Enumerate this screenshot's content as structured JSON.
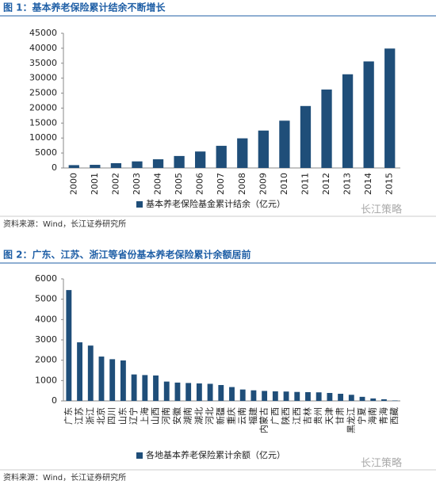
{
  "chart_data": [
    {
      "type": "bar",
      "title": "图 1：基本养老保险累计结余不断增长",
      "categories": [
        "2000",
        "2001",
        "2002",
        "2003",
        "2004",
        "2005",
        "2006",
        "2007",
        "2008",
        "2009",
        "2010",
        "2011",
        "2012",
        "2013",
        "2014",
        "2015"
      ],
      "series": [
        {
          "name": "基本养老保险基金累计结余（亿元）",
          "color": "#1f4e79",
          "values": [
            950,
            1050,
            1600,
            2200,
            2900,
            4000,
            5500,
            7400,
            9900,
            12500,
            15800,
            20700,
            26200,
            31300,
            35600,
            39900
          ]
        }
      ],
      "ylim": [
        0,
        45000
      ],
      "yticks": [
        0,
        5000,
        10000,
        15000,
        20000,
        25000,
        30000,
        35000,
        40000,
        45000
      ],
      "source": "资料来源：Wind，长江证券研究所",
      "watermark": "长江策略"
    },
    {
      "type": "bar",
      "title": "图 2：广东、江苏、浙江等省份基本养老保险累计余额居前",
      "categories": [
        "广东",
        "江苏",
        "浙江",
        "北京",
        "四川",
        "山东",
        "辽宁",
        "上海",
        "山西",
        "河南",
        "安徽",
        "湖南",
        "湖北",
        "河北",
        "新疆",
        "重庆",
        "云南",
        "福建",
        "内蒙古",
        "广西",
        "陕西",
        "江西",
        "吉林",
        "贵州",
        "天津",
        "甘肃",
        "黑龙江",
        "宁夏",
        "海南",
        "青海",
        "西藏"
      ],
      "series": [
        {
          "name": "各地基本养老保险累计余额（亿元）",
          "color": "#1f4e79",
          "values": [
            5450,
            2880,
            2720,
            2180,
            2050,
            1990,
            1300,
            1270,
            1250,
            950,
            900,
            880,
            860,
            840,
            780,
            680,
            560,
            520,
            490,
            470,
            460,
            440,
            430,
            420,
            390,
            350,
            300,
            200,
            120,
            80,
            20
          ]
        }
      ],
      "ylim": [
        0,
        6000
      ],
      "yticks": [
        0,
        1000,
        2000,
        3000,
        4000,
        5000,
        6000
      ],
      "source": "资料来源：Wind，长江证券研究所",
      "watermark": "长江策略"
    }
  ]
}
